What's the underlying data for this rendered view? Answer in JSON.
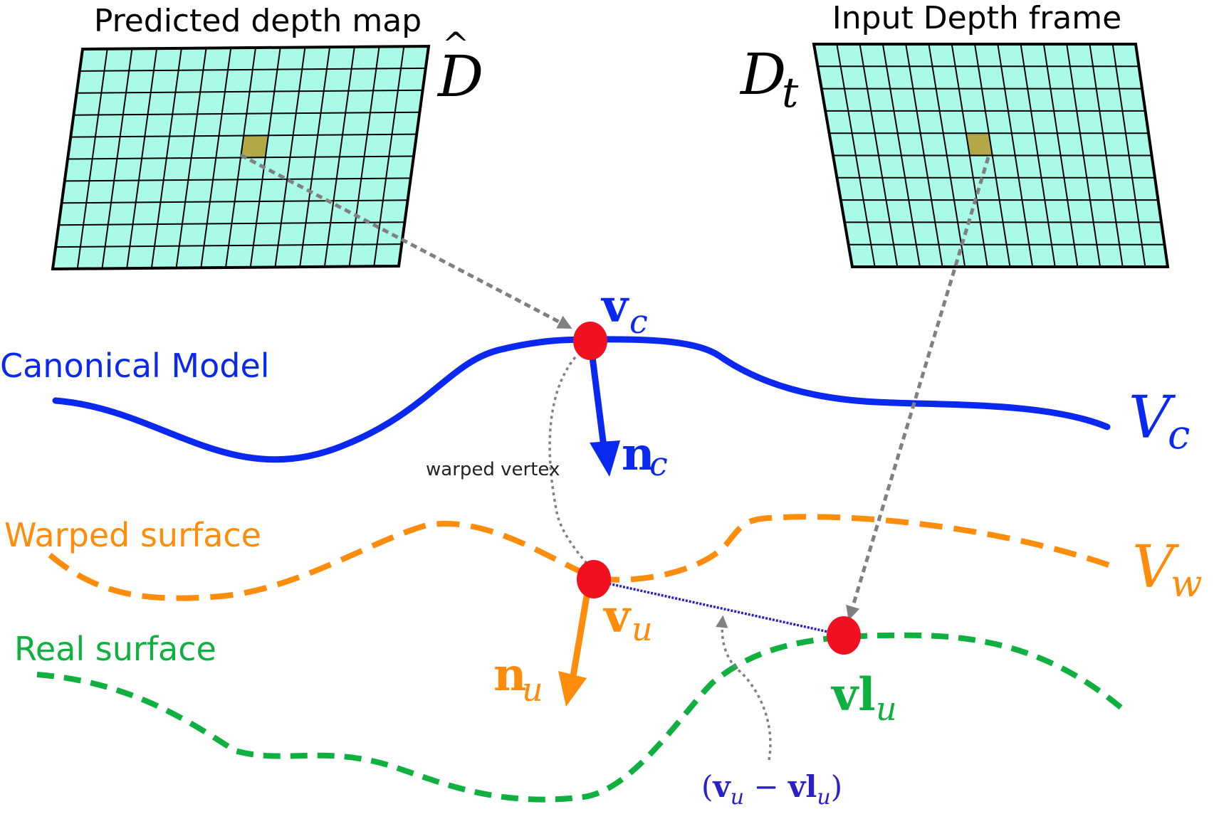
{
  "grids": {
    "predicted": {
      "title": "Predicted depth map",
      "symbol": "D",
      "hat": "^",
      "fill": "#aafaea",
      "highlight": "#b3a848"
    },
    "input": {
      "title": "Input Depth frame",
      "symbol": "D",
      "subscript": "t",
      "fill": "#aafaea",
      "highlight": "#b3a848"
    },
    "rows": 10,
    "cols": 14
  },
  "surfaces": {
    "canonical": {
      "label": "Canonical Model",
      "symbol": "V",
      "subscript": "c",
      "color": "#0a28f0"
    },
    "warped": {
      "label": "Warped surface",
      "symbol": "V",
      "subscript": "w",
      "color": "#ff8c0a"
    },
    "real": {
      "label": "Real surface",
      "color": "#10b040"
    }
  },
  "points": {
    "vc": {
      "bold": "v",
      "subscript": "c",
      "color": "#0a28f0"
    },
    "vu": {
      "bold": "v",
      "subscript": "u",
      "color": "#ff8c0a"
    },
    "vlu": {
      "bold": "vl",
      "subscript": "u",
      "color": "#10b040"
    },
    "marker_color": "#f01020"
  },
  "normals": {
    "nc": {
      "bold": "n",
      "subscript": "c",
      "color": "#0a28f0"
    },
    "nu": {
      "bold": "n",
      "subscript": "u",
      "color": "#ff8c0a"
    }
  },
  "annotations": {
    "warped_vertex": "warped vertex",
    "residual": {
      "open": "(",
      "v": "v",
      "v_sub": "u",
      "minus": " − ",
      "vl": "vl",
      "vl_sub": "u",
      "close": ")",
      "color": "#2a20c8"
    },
    "arrow_color": "#808080"
  }
}
